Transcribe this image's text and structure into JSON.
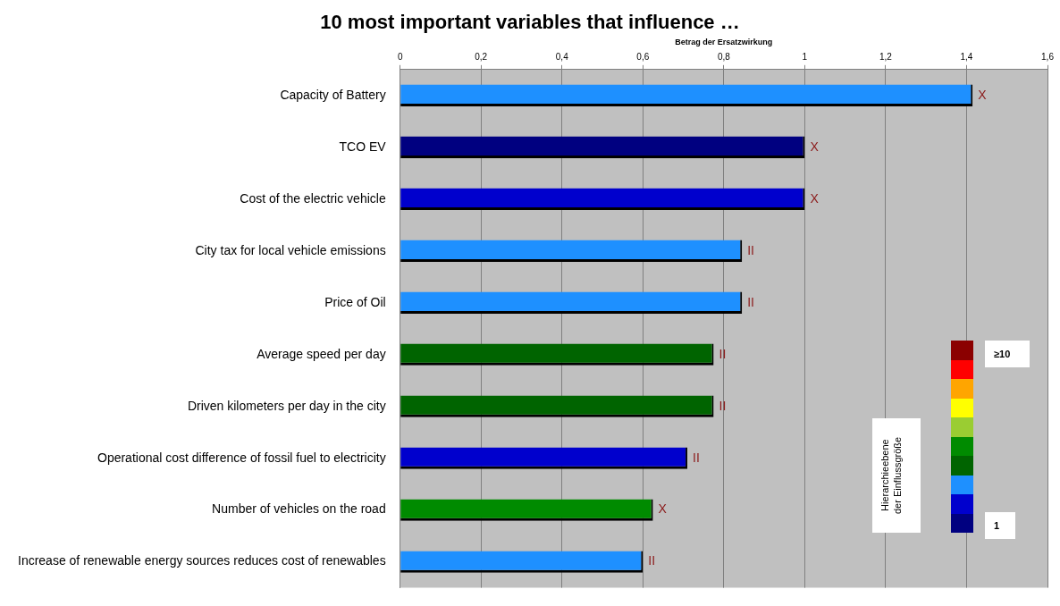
{
  "chart_data": {
    "type": "bar",
    "orientation": "horizontal",
    "title": "10 most important variables that influence …",
    "xlabel": "Betrag der Ersatzwirkung",
    "categories": [
      "Capacity of Battery",
      "TCO EV",
      "Cost of the electric vehicle",
      "City tax for local vehicle emissions",
      "Price of Oil",
      "Average speed per day",
      "Driven kilometers per day in the city",
      "Operational cost difference of fossil fuel to electricity",
      "Number of vehicles on the road",
      "Increase of renewable energy sources reduces cost of renewables"
    ],
    "values": [
      1.415,
      1.0,
      1.0,
      0.845,
      0.845,
      0.775,
      0.775,
      0.71,
      0.625,
      0.6
    ],
    "colors": [
      "#1e90ff",
      "#000080",
      "#0000cd",
      "#1e90ff",
      "#1e90ff",
      "#006400",
      "#006400",
      "#0000cd",
      "#008b00",
      "#1e90ff"
    ],
    "value_labels": [
      "X",
      "X",
      "X",
      "II",
      "II",
      "II",
      "II",
      "II",
      "X",
      "II"
    ],
    "xlim": [
      0,
      1.6
    ],
    "xticks": [
      0,
      {
        "value": 0.2,
        "label": "0,2"
      },
      {
        "value": 0.4,
        "label": "0,4"
      },
      {
        "value": 0.6,
        "label": "0,6"
      },
      {
        "value": 0.8,
        "label": "0,8"
      },
      1,
      {
        "value": 1.2,
        "label": "1,2"
      },
      {
        "value": 1.4,
        "label": "1,4"
      },
      {
        "value": 1.6,
        "label": "1,6"
      }
    ],
    "grid": "x",
    "legend": false,
    "annotations": [
      "Hierarchieebene der Einflussgröße",
      "≥10",
      "1"
    ]
  }
}
